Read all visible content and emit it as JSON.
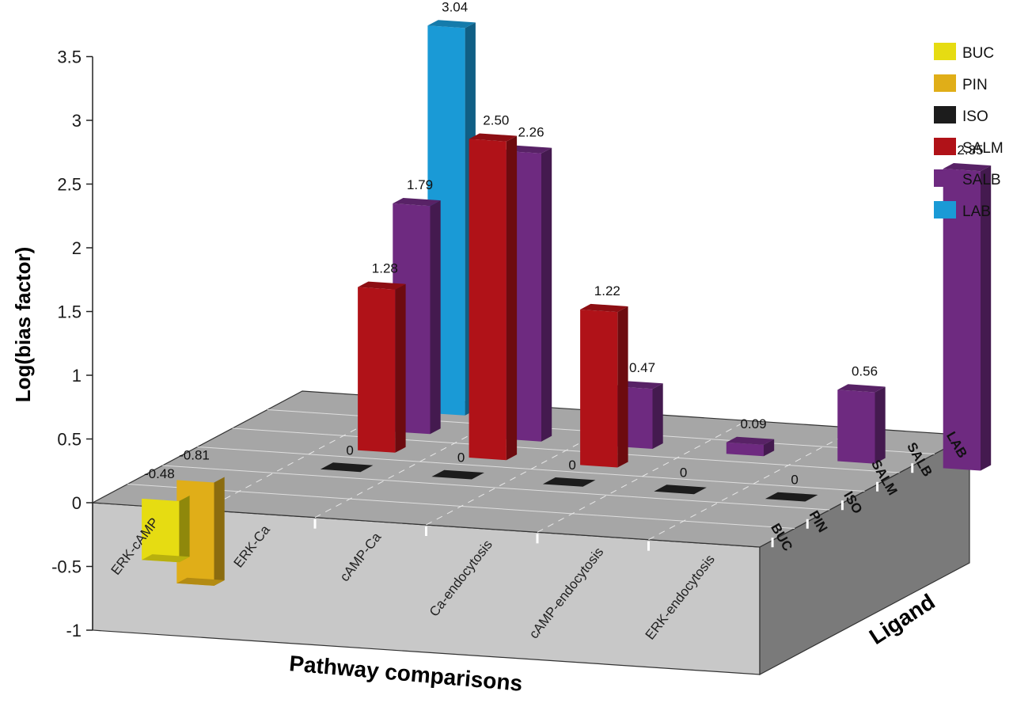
{
  "chart_data": {
    "type": "bar",
    "projection": "3d",
    "ylabel": "Log(bias factor)",
    "xlabel": "Pathway comparisons",
    "zlabel": "Ligand",
    "ylim": [
      -1,
      3.5
    ],
    "yticks": [
      "3.5",
      "3",
      "2.5",
      "2",
      "1.5",
      "1",
      "0.5",
      "0",
      "-0.5",
      "-1"
    ],
    "categories": [
      "ERK-cAMP",
      "ERK-Ca",
      "cAMP-Ca",
      "Ca-endocytosis",
      "cAMP-endocytosis",
      "ERK-endocytosis"
    ],
    "ligands": [
      "BUC",
      "PIN",
      "ISO",
      "SALM",
      "SALB",
      "LAB"
    ],
    "legend": {
      "position": "top-right",
      "entries": [
        {
          "name": "BUC",
          "color": "#e6dc12"
        },
        {
          "name": "PIN",
          "color": "#e0ae18"
        },
        {
          "name": "ISO",
          "color": "#1c1c1c"
        },
        {
          "name": "SALM",
          "color": "#b01218"
        },
        {
          "name": "SALB",
          "color": "#6e2a80"
        },
        {
          "name": "LAB",
          "color": "#1a9ad6"
        }
      ]
    },
    "bars": [
      {
        "category": "ERK-cAMP",
        "ligand": "BUC",
        "value": -0.48,
        "label": "-0.48"
      },
      {
        "category": "ERK-cAMP",
        "ligand": "PIN",
        "value": -0.81,
        "label": "-0.81"
      },
      {
        "category": "ERK-Ca",
        "ligand": "ISO",
        "value": 0,
        "label": "0"
      },
      {
        "category": "ERK-Ca",
        "ligand": "SALM",
        "value": 1.28,
        "label": "1.28"
      },
      {
        "category": "ERK-Ca",
        "ligand": "SALB",
        "value": 1.79,
        "label": "1.79"
      },
      {
        "category": "ERK-Ca",
        "ligand": "LAB",
        "value": 3.04,
        "label": "3.04"
      },
      {
        "category": "cAMP-Ca",
        "ligand": "ISO",
        "value": 0,
        "label": "0"
      },
      {
        "category": "cAMP-Ca",
        "ligand": "SALM",
        "value": 2.5,
        "label": "2.50"
      },
      {
        "category": "cAMP-Ca",
        "ligand": "SALB",
        "value": 2.26,
        "label": "2.26"
      },
      {
        "category": "Ca-endocytosis",
        "ligand": "ISO",
        "value": 0,
        "label": "0"
      },
      {
        "category": "Ca-endocytosis",
        "ligand": "SALM",
        "value": 1.22,
        "label": "1.22"
      },
      {
        "category": "Ca-endocytosis",
        "ligand": "SALB",
        "value": 0.47,
        "label": "0.47"
      },
      {
        "category": "cAMP-endocytosis",
        "ligand": "ISO",
        "value": 0,
        "label": "0"
      },
      {
        "category": "cAMP-endocytosis",
        "ligand": "SALB",
        "value": 0.09,
        "label": "0.09"
      },
      {
        "category": "ERK-endocytosis",
        "ligand": "ISO",
        "value": 0,
        "label": "0"
      },
      {
        "category": "ERK-endocytosis",
        "ligand": "SALB",
        "value": 0.56,
        "label": "0.56"
      },
      {
        "category": "ERK-endocytosis",
        "ligand": "SALB",
        "value": 2.35,
        "label": "2.35"
      }
    ]
  }
}
